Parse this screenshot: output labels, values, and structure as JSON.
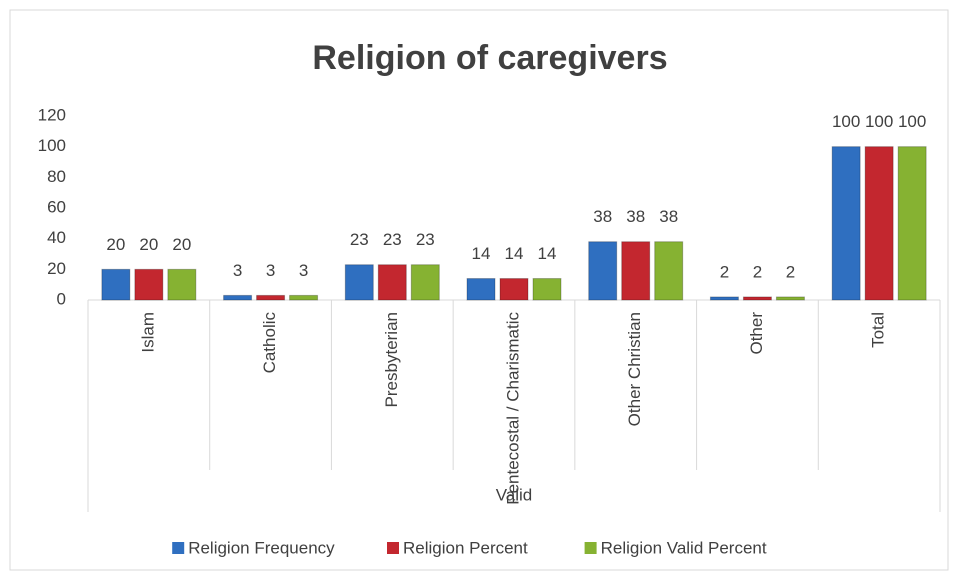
{
  "chart_data": {
    "type": "bar",
    "title": "Religion of caregivers",
    "categories": [
      "Islam",
      "Catholic",
      "Presbyterian",
      "Pentecostal / Charismatic",
      "Other Christian",
      "Other",
      "Total"
    ],
    "category_group": "Valid",
    "series": [
      {
        "name": "Religion Frequency",
        "color": "#2f6fc0",
        "values": [
          20,
          3,
          23,
          14,
          38,
          2,
          100
        ]
      },
      {
        "name": "Religion Percent",
        "color": "#c3272f",
        "values": [
          20,
          3,
          23,
          14,
          38,
          2,
          100
        ]
      },
      {
        "name": "Religion Valid Percent",
        "color": "#86b232",
        "values": [
          20,
          3,
          23,
          14,
          38,
          2,
          100
        ]
      }
    ],
    "ylim": [
      0,
      120
    ],
    "yticks": [
      0,
      20,
      40,
      60,
      80,
      100,
      120
    ],
    "grid": false,
    "legend": "bottom"
  }
}
